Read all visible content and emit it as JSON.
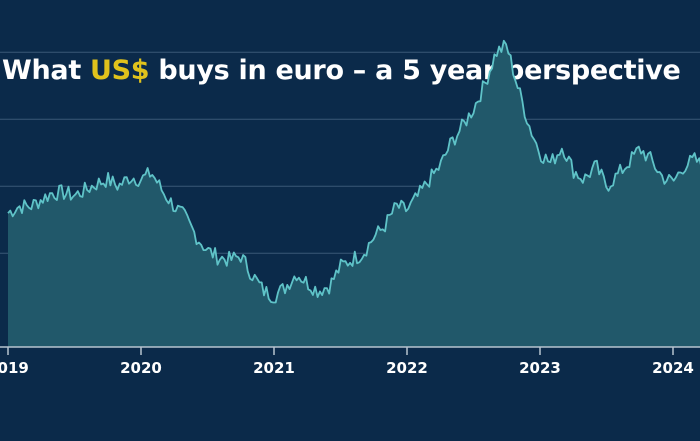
{
  "colors": {
    "background": "#0b2a4a",
    "title_text": "#ffffff",
    "title_accent": "#e0c21c",
    "line": "#5fc3c8",
    "area_fill": "#21586a",
    "gridline": "#3a5876",
    "axis": "#b8c4d0",
    "tick_label": "#ffffff"
  },
  "title": {
    "prefix": "What ",
    "accent": "US$",
    "suffix": " buys in euro – a 5 year perspective"
  },
  "chart_data": {
    "type": "area",
    "title": "What US$ buys in euro – a 5 year perspective",
    "xlabel": "",
    "ylabel": "",
    "x_ticks": [
      "2019",
      "2020",
      "2021",
      "2022",
      "2023",
      "2024"
    ],
    "ylim": [
      0.78,
      1.06
    ],
    "gridlines_y": [
      0.85,
      0.9,
      0.95,
      1.0
    ],
    "grid": "horizontal",
    "legend": "none",
    "series": [
      {
        "x": [
          2019.0,
          2019.08,
          2019.17,
          2019.25,
          2019.33,
          2019.42,
          2019.5,
          2019.58,
          2019.67,
          2019.75,
          2019.83,
          2019.92,
          2020.0,
          2020.08,
          2020.17,
          2020.25,
          2020.33,
          2020.42,
          2020.5,
          2020.58,
          2020.67,
          2020.75,
          2020.83,
          2020.92,
          2021.0,
          2021.08,
          2021.17,
          2021.25,
          2021.33,
          2021.42,
          2021.5,
          2021.58,
          2021.67,
          2021.75,
          2021.83,
          2021.92,
          2022.0,
          2022.08,
          2022.17,
          2022.25,
          2022.33,
          2022.42,
          2022.5,
          2022.58,
          2022.67,
          2022.75,
          2022.83,
          2022.92,
          2023.0,
          2023.08,
          2023.17,
          2023.25,
          2023.33,
          2023.42,
          2023.5,
          2023.58,
          2023.67,
          2023.75,
          2023.83,
          2023.92,
          2024.0,
          2024.08,
          2024.17,
          2024.25
        ],
        "values": [
          0.88,
          0.885,
          0.885,
          0.89,
          0.895,
          0.895,
          0.893,
          0.897,
          0.902,
          0.905,
          0.9,
          0.907,
          0.905,
          0.91,
          0.895,
          0.885,
          0.877,
          0.862,
          0.852,
          0.847,
          0.845,
          0.848,
          0.835,
          0.822,
          0.818,
          0.824,
          0.835,
          0.828,
          0.822,
          0.826,
          0.84,
          0.845,
          0.85,
          0.862,
          0.87,
          0.885,
          0.882,
          0.892,
          0.905,
          0.915,
          0.932,
          0.945,
          0.958,
          0.975,
          1.0,
          1.005,
          0.975,
          0.945,
          0.925,
          0.917,
          0.93,
          0.912,
          0.905,
          0.915,
          0.9,
          0.908,
          0.918,
          0.928,
          0.92,
          0.907,
          0.903,
          0.915,
          0.92,
          0.91
        ]
      }
    ]
  }
}
